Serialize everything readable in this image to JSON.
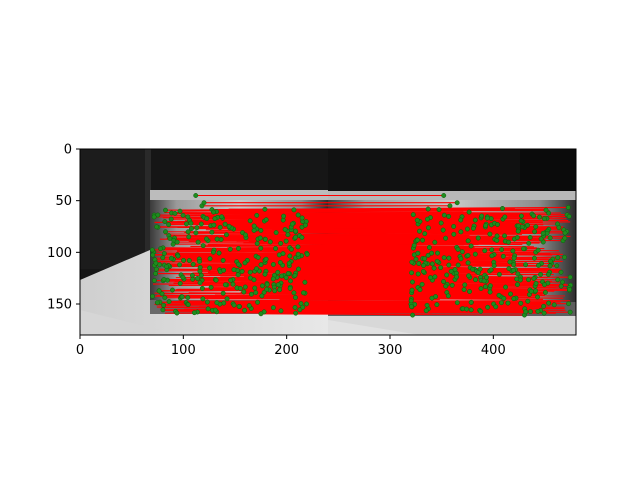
{
  "chart_data": {
    "type": "scatter",
    "description_kind": "image-with-feature-matches",
    "x": {
      "ticks": [
        0,
        100,
        200,
        300,
        400
      ],
      "lim": [
        0,
        480
      ]
    },
    "y": {
      "ticks": [
        0,
        50,
        100,
        150
      ],
      "lim": [
        180,
        0
      ],
      "inverted": true
    },
    "grid": false,
    "legend": "none",
    "colors": {
      "match_lines": "#ff0000",
      "keypoints": "#1e8c1e",
      "keypoint_edge": "#0b5d0b"
    },
    "image": {
      "panels": 2,
      "panel_width": 240,
      "height": 180,
      "object_bbox_left": [
        68,
        42,
        240,
        160
      ],
      "object_bbox_right": [
        310,
        44,
        480,
        160
      ]
    },
    "match_band": {
      "y_top": 44,
      "y_bottom": 160,
      "x_left": 70,
      "x_right": 475
    },
    "keypoints_approx_count": 600
  }
}
